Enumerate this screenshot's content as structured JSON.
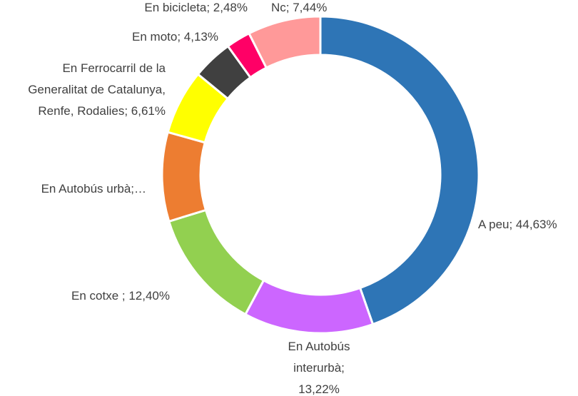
{
  "chart_data": {
    "type": "donut",
    "labels": [
      "A peu; 44,63%",
      "En Autobús\ninterurbà;\n13,22%",
      "En cotxe ; 12,40%",
      "En Autobús urbà;…",
      "En Ferrocarril de la\nGeneralitat de Catalunya,\nRenfe, Rodalies; 6,61%",
      "En moto; 4,13%",
      "En bicicleta; 2,48%",
      "Nc; 7,44%"
    ],
    "values": [
      44.63,
      13.22,
      12.4,
      9.09,
      6.61,
      4.13,
      2.48,
      7.44
    ],
    "colors": [
      "#2e75b6",
      "#cc66ff",
      "#92d050",
      "#ed7d31",
      "#ffff00",
      "#404040",
      "#ff0066",
      "#ff9999"
    ]
  }
}
